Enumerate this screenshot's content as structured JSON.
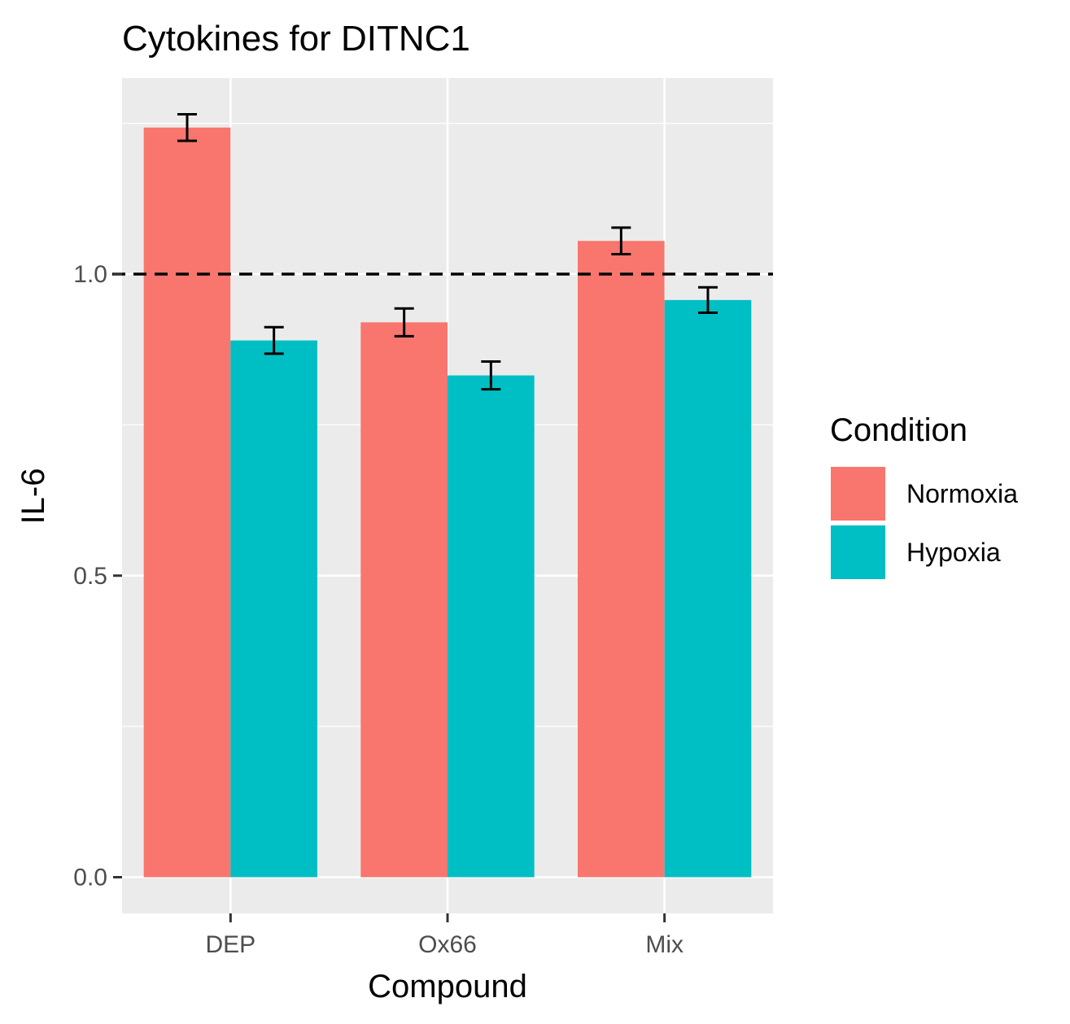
{
  "chart_data": {
    "type": "bar",
    "title": "Cytokines for DITNC1",
    "xlabel": "Compound",
    "ylabel": "IL-6",
    "categories": [
      "DEP",
      "Ox66",
      "Mix"
    ],
    "series": [
      {
        "name": "Normoxia",
        "color": "#F8766D",
        "values": [
          1.243,
          0.92,
          1.055
        ],
        "errors": [
          0.022,
          0.023,
          0.022
        ]
      },
      {
        "name": "Hypoxia",
        "color": "#00BFC4",
        "values": [
          0.89,
          0.832,
          0.957
        ],
        "errors": [
          0.022,
          0.023,
          0.021
        ]
      }
    ],
    "ylim": [
      -0.06,
      1.325
    ],
    "yticks": [
      0.0,
      0.5,
      1.0
    ],
    "ytick_labels": [
      "0.0",
      "0.5",
      "1.0"
    ],
    "reference_line": {
      "y": 1.0,
      "style": "dashed",
      "color": "#000000"
    },
    "grid": true,
    "legend": {
      "title": "Condition",
      "position": "right"
    },
    "panel_background": "#EBEBEB",
    "grid_color": "#FFFFFF"
  }
}
